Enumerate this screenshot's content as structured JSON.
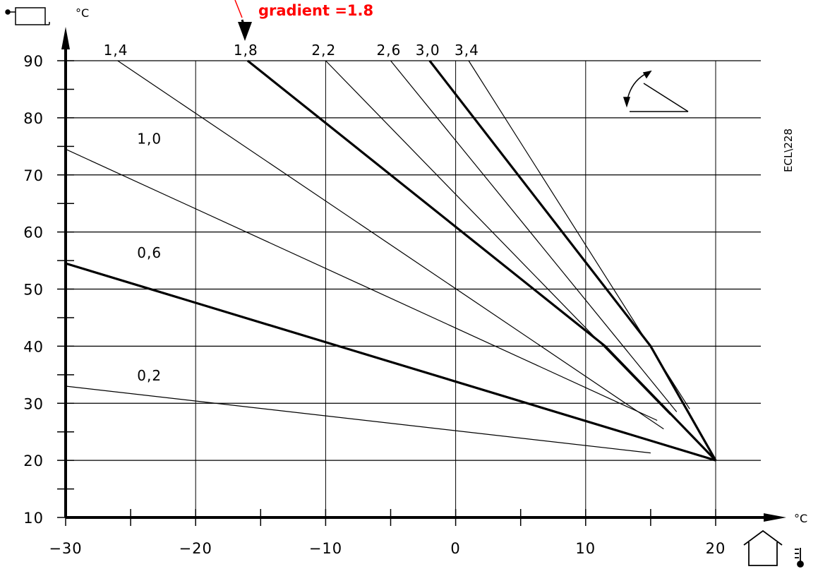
{
  "chart_data": {
    "type": "line",
    "title": "",
    "xlabel": "",
    "ylabel": "",
    "x_unit": "°C",
    "y_unit": "°C",
    "xlim": [
      -30,
      20
    ],
    "ylim": [
      10,
      90
    ],
    "x_ticks": [
      -30,
      -20,
      -10,
      0,
      10,
      20
    ],
    "x_tick_labels": [
      "−30",
      "−20",
      "−10",
      "0",
      "10",
      "20"
    ],
    "y_ticks": [
      10,
      20,
      30,
      40,
      50,
      60,
      70,
      80,
      90
    ],
    "y_tick_labels": [
      "10",
      "20",
      "30",
      "40",
      "50",
      "60",
      "70",
      "80",
      "90"
    ],
    "grid": true,
    "series": [
      {
        "name": "0,2",
        "bold": false,
        "points": [
          [
            -30,
            33
          ],
          [
            15,
            21.3
          ]
        ]
      },
      {
        "name": "0,6",
        "bold": true,
        "points": [
          [
            -30,
            54.5
          ],
          [
            20,
            20
          ]
        ]
      },
      {
        "name": "1,0",
        "bold": false,
        "points": [
          [
            -30,
            74.5
          ],
          [
            15.5,
            27
          ]
        ]
      },
      {
        "name": "1,4",
        "bold": false,
        "points": [
          [
            -26,
            90
          ],
          [
            16,
            25.5
          ]
        ]
      },
      {
        "name": "1,8",
        "bold": true,
        "points": [
          [
            -16,
            90
          ],
          [
            11.5,
            40
          ],
          [
            20,
            20
          ]
        ]
      },
      {
        "name": "2,2",
        "bold": false,
        "points": [
          [
            -10,
            90
          ],
          [
            16.5,
            28
          ]
        ]
      },
      {
        "name": "2,6",
        "bold": false,
        "points": [
          [
            -5,
            90
          ],
          [
            17,
            28.5
          ]
        ]
      },
      {
        "name": "3,0",
        "bold": true,
        "points": [
          [
            -2,
            90
          ],
          [
            15,
            40
          ],
          [
            20,
            20
          ]
        ]
      },
      {
        "name": "3,4",
        "bold": false,
        "points": [
          [
            1,
            90
          ],
          [
            18,
            29
          ]
        ]
      }
    ],
    "annotations": {
      "callout": "gradient =1.8",
      "side_label": "ECL\\228"
    }
  }
}
